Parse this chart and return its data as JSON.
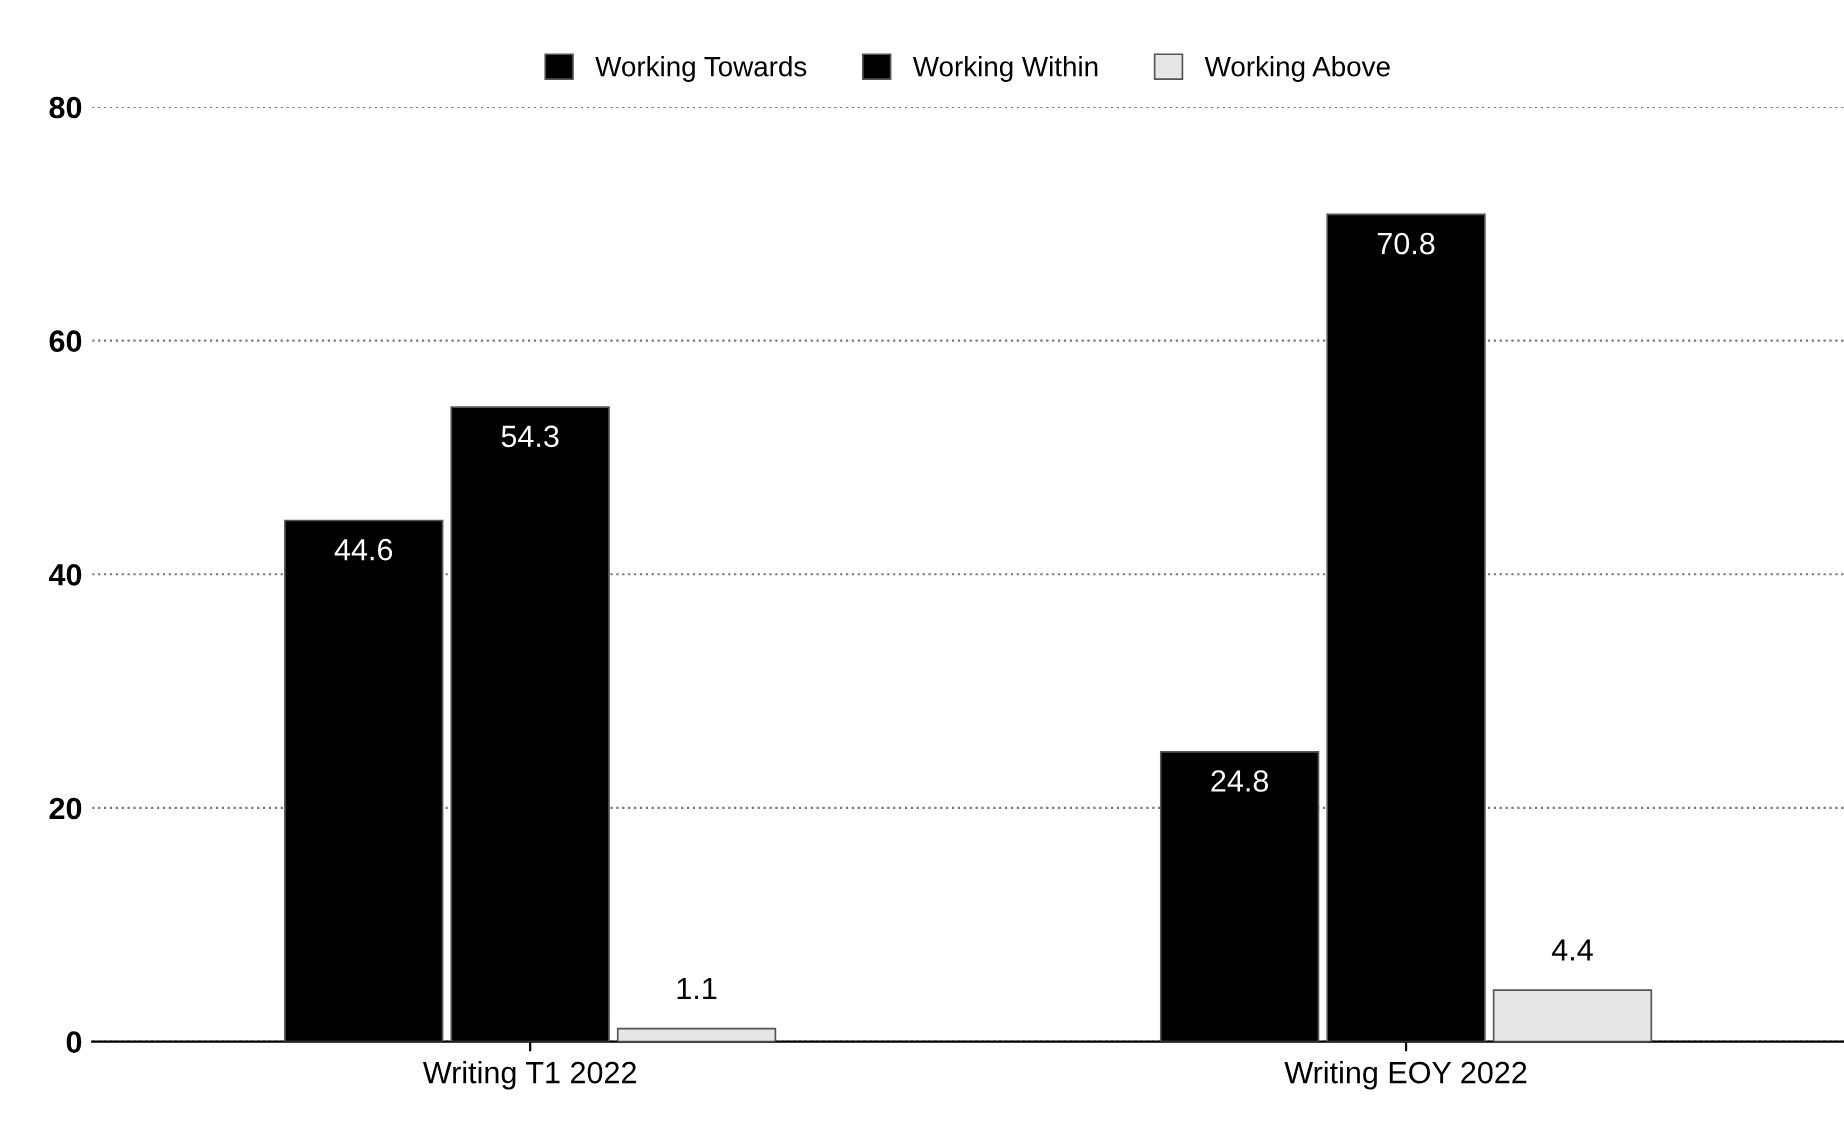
{
  "chart_data": {
    "type": "bar",
    "categories": [
      "Writing T1 2022",
      "Writing EOY 2022"
    ],
    "series": [
      {
        "name": "Working Towards",
        "color": "#000000",
        "values": [
          44.6,
          24.8
        ]
      },
      {
        "name": "Working Within",
        "color": "#000000",
        "values": [
          54.3,
          70.8
        ]
      },
      {
        "name": "Working Above",
        "color": "#e6e6e6",
        "values": [
          1.1,
          4.4
        ]
      }
    ],
    "ylim": [
      0,
      80
    ],
    "yticks": [
      0,
      20,
      40,
      60,
      80
    ],
    "grid": "y",
    "legend": "top",
    "data_labels": true
  }
}
